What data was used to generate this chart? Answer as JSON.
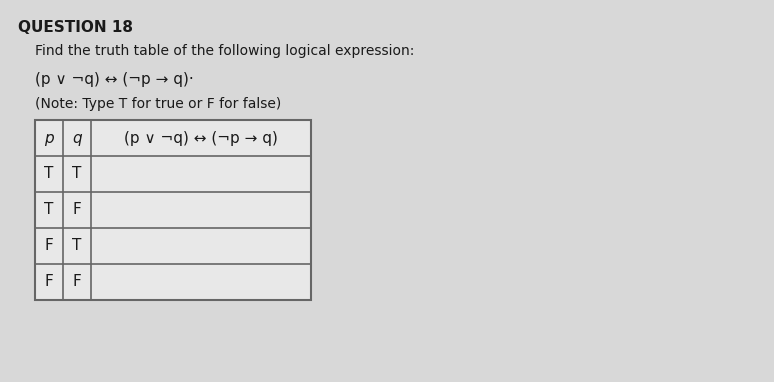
{
  "title": "QUESTION 18",
  "subtitle": "Find the truth table of the following logical expression:",
  "expression_line1": "(p ∨ ¬q) ↔ (¬p → q)·",
  "expression_line2": "(Note: Type T for true or F for false)",
  "col_header_1": "p",
  "col_header_2": "q",
  "col_header_3": "(p ∨ ¬q) ↔ (¬p → q)",
  "rows": [
    [
      "T",
      "T",
      ""
    ],
    [
      "T",
      "F",
      ""
    ],
    [
      "F",
      "T",
      ""
    ],
    [
      "F",
      "F",
      ""
    ]
  ],
  "bg_color": "#d8d8d8",
  "text_color": "#1a1a1a",
  "table_bg": "#e8e8e8",
  "border_color": "#666666",
  "title_fontsize": 11,
  "body_fontsize": 10,
  "table_fontsize": 11
}
